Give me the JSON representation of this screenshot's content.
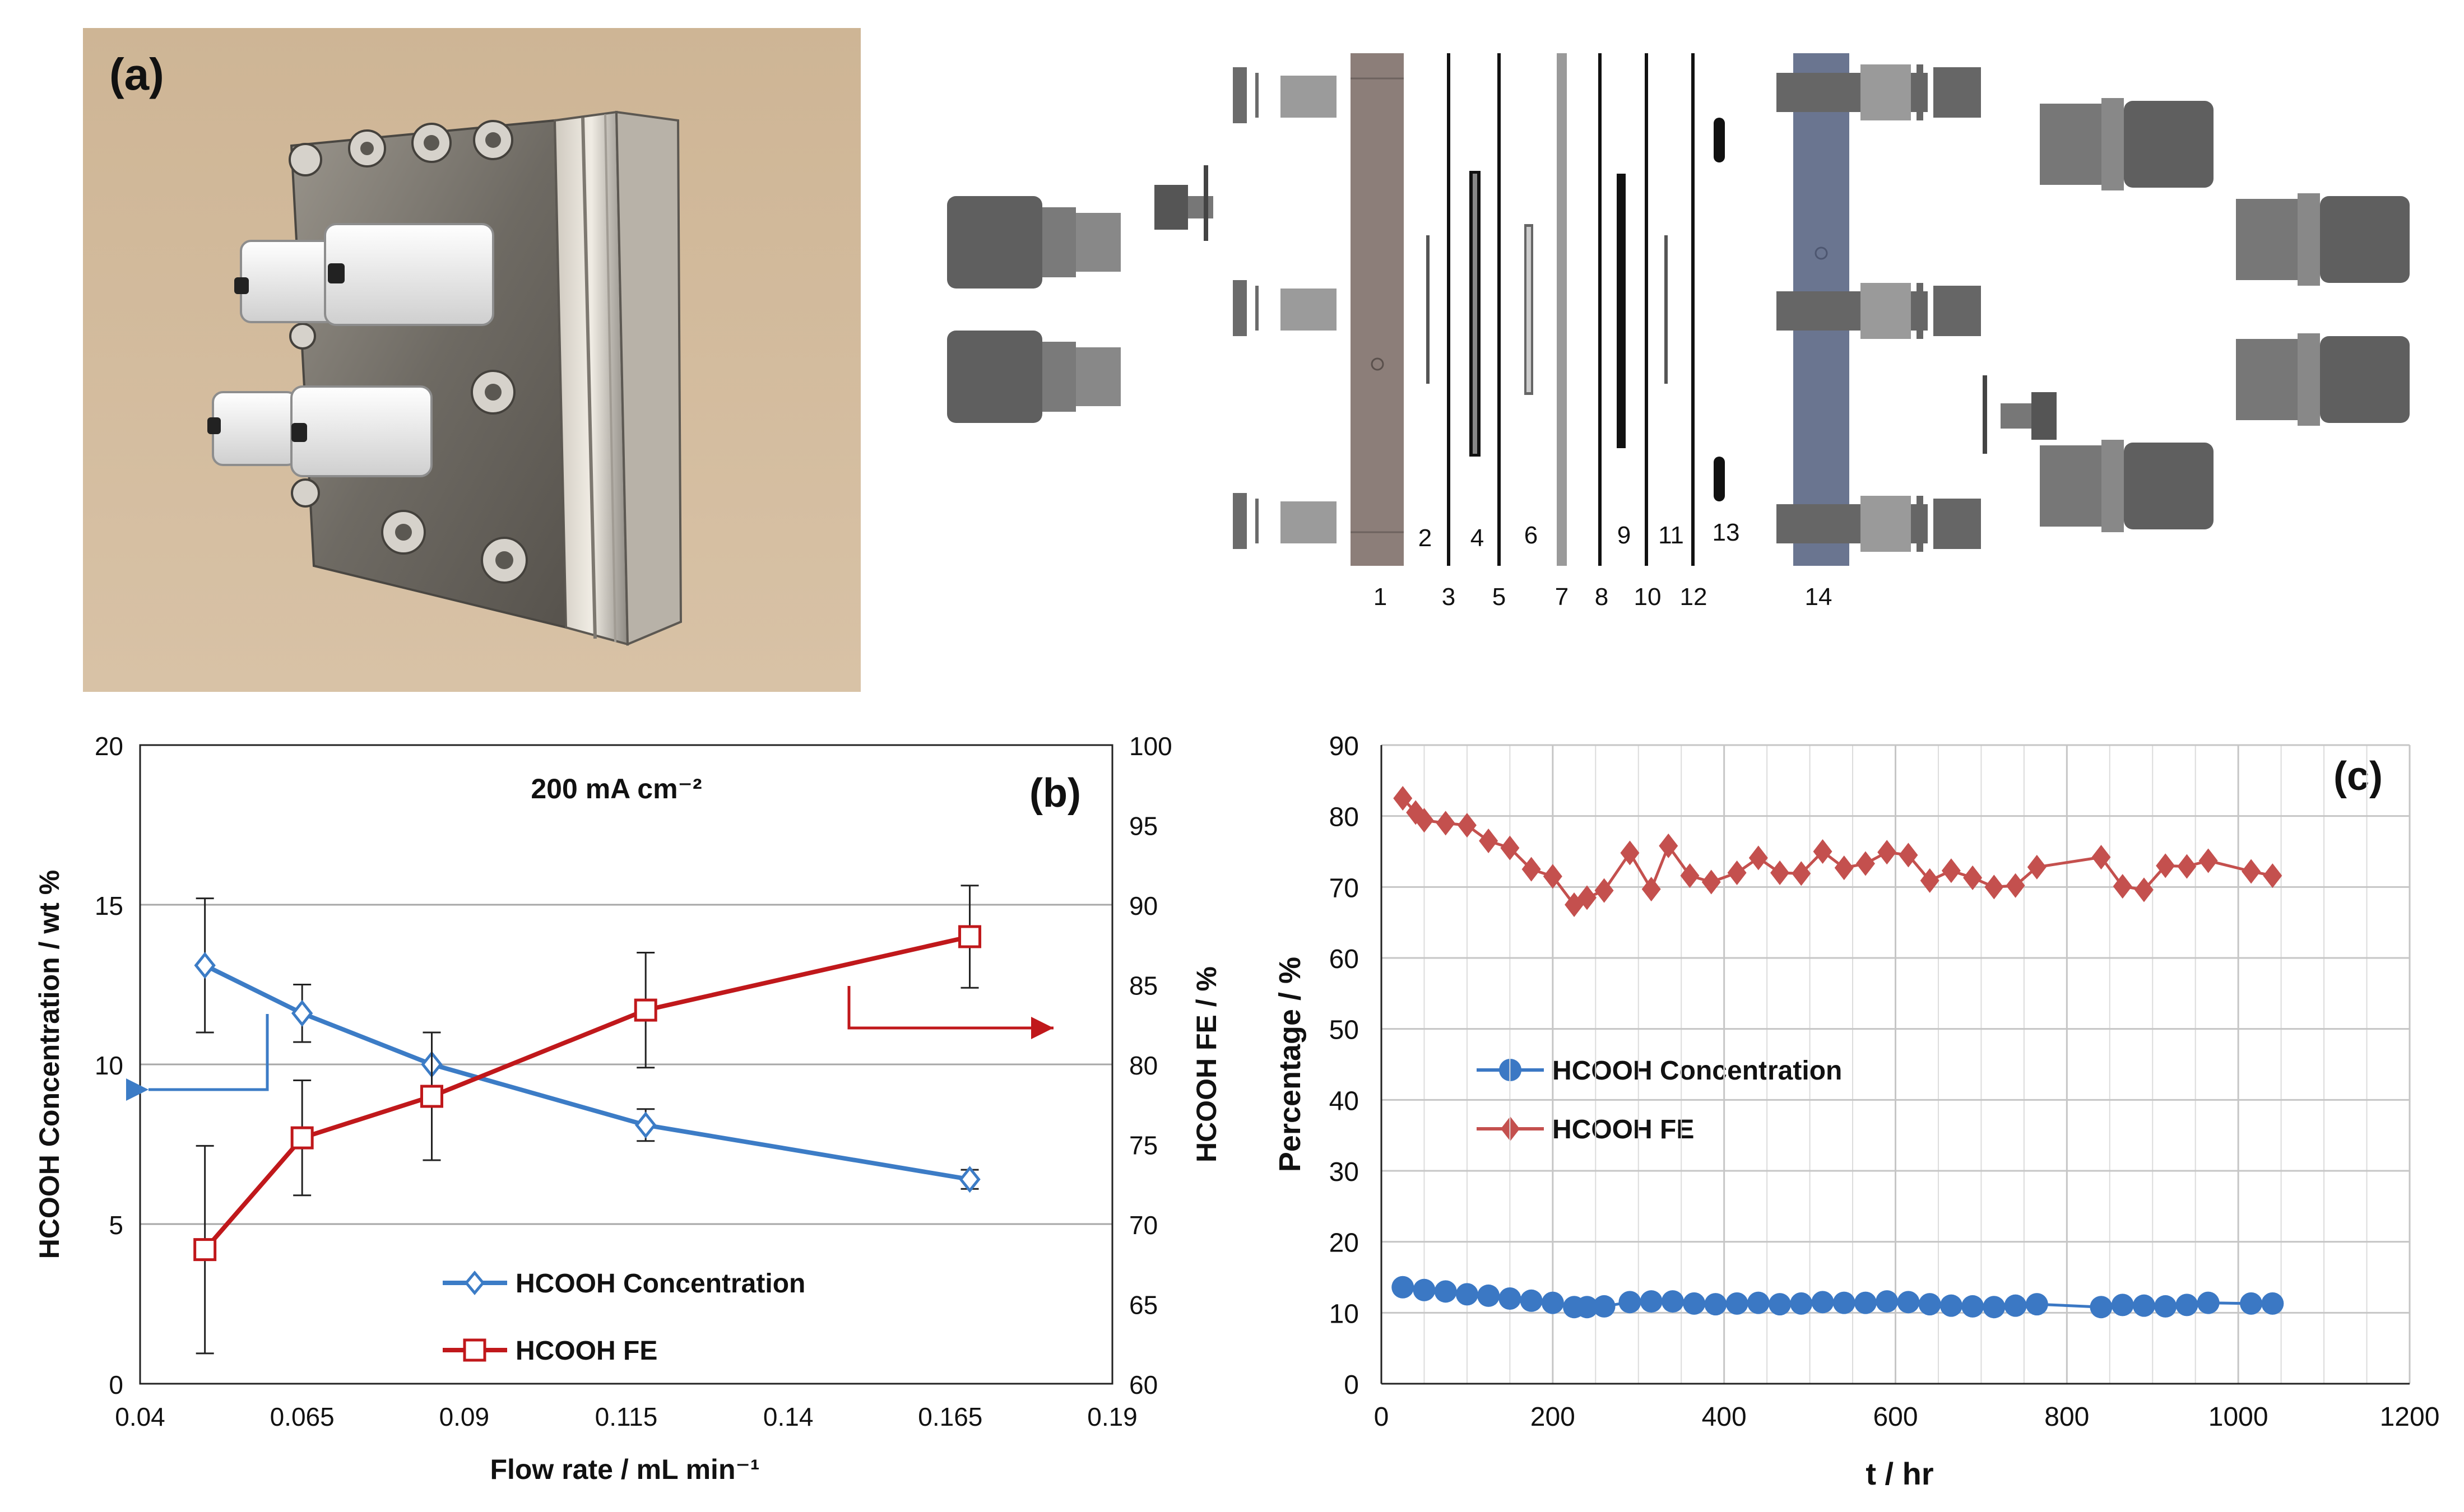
{
  "panel_a": {
    "label": "(a)",
    "part_numbers": [
      "1",
      "2",
      "3",
      "4",
      "5",
      "6",
      "7",
      "8",
      "9",
      "10",
      "11",
      "12",
      "13",
      "14"
    ]
  },
  "colors": {
    "blue": "#3c7cc6",
    "red": "#c0181b",
    "red_c": "#c4504e",
    "blue_c": "#3b78c4",
    "grid": "#a7a7a7",
    "plate_left": "#8c7e79",
    "plate_right": "#6a7590",
    "fitting": "#6a6a6a"
  },
  "chart_data": [
    {
      "id": "b",
      "type": "line",
      "panel_label": "(b)",
      "title": "200 mA cm⁻²",
      "xlabel": "Flow rate / mL min⁻¹",
      "ylabel": "HCOOH Concentration / wt %",
      "y2label": "HCOOH FE / %",
      "xlim": [
        0.04,
        0.19
      ],
      "xticks": [
        0.04,
        0.065,
        0.09,
        0.115,
        0.14,
        0.165,
        0.19
      ],
      "xtick_labels": [
        "0.04",
        "0.065",
        "0.09",
        "0.115",
        "0.14",
        "0.165",
        "0.19"
      ],
      "ylim": [
        0,
        20
      ],
      "yticks": [
        0,
        5,
        10,
        15,
        20
      ],
      "ytick_labels": [
        "0",
        "5",
        "10",
        "15",
        "20"
      ],
      "y2lim": [
        60,
        100
      ],
      "y2ticks": [
        60,
        65,
        70,
        75,
        80,
        85,
        90,
        95,
        100
      ],
      "y2tick_labels": [
        "60",
        "65",
        "70",
        "75",
        "80",
        "85",
        "90",
        "95",
        "100"
      ],
      "grid": "horizontal",
      "series": [
        {
          "name": "HCOOH Concentration",
          "axis": "left",
          "marker": "diamond",
          "x": [
            0.05,
            0.065,
            0.085,
            0.118,
            0.168
          ],
          "y": [
            13.1,
            11.6,
            10.0,
            8.1,
            6.4
          ],
          "err": [
            2.1,
            0.9,
            1.0,
            0.5,
            0.3
          ]
        },
        {
          "name": "HCOOH FE",
          "axis": "right",
          "marker": "square",
          "x": [
            0.05,
            0.065,
            0.085,
            0.118,
            0.168
          ],
          "y": [
            68.4,
            75.4,
            78.0,
            83.4,
            88.0
          ],
          "err": [
            6.5,
            3.6,
            4.0,
            3.6,
            3.2
          ]
        }
      ],
      "legend": "bottom-center",
      "annotations": [
        "arrow pointing left to left axis",
        "arrow pointing right to right axis"
      ]
    },
    {
      "id": "c",
      "type": "line",
      "panel_label": "(c)",
      "xlabel": "t / hr",
      "ylabel": "Percentage / %",
      "xlim": [
        0,
        1200
      ],
      "xticks": [
        0,
        200,
        400,
        600,
        800,
        1000,
        1200
      ],
      "xtick_labels": [
        "0",
        "200",
        "400",
        "600",
        "800",
        "1000",
        "1200"
      ],
      "ylim": [
        0,
        90
      ],
      "yticks": [
        0,
        10,
        20,
        30,
        40,
        50,
        60,
        70,
        80,
        90
      ],
      "ytick_labels": [
        "0",
        "10",
        "20",
        "30",
        "40",
        "50",
        "60",
        "70",
        "80",
        "90"
      ],
      "grid": "both",
      "series": [
        {
          "name": "HCOOH Concentration",
          "marker": "circle",
          "x": [
            25,
            50,
            75,
            100,
            125,
            150,
            175,
            200,
            225,
            240,
            260,
            290,
            315,
            340,
            365,
            390,
            415,
            440,
            465,
            490,
            515,
            540,
            565,
            590,
            615,
            640,
            665,
            690,
            715,
            740,
            765,
            840,
            865,
            890,
            915,
            940,
            965,
            1015,
            1040
          ],
          "y": [
            13.6,
            13.2,
            13.0,
            12.6,
            12.4,
            12.0,
            11.7,
            11.4,
            10.8,
            10.8,
            10.9,
            11.5,
            11.6,
            11.6,
            11.3,
            11.2,
            11.3,
            11.4,
            11.2,
            11.3,
            11.5,
            11.4,
            11.4,
            11.6,
            11.5,
            11.2,
            11.0,
            10.9,
            10.8,
            11.0,
            11.2,
            10.8,
            11.1,
            11.0,
            10.9,
            11.1,
            11.4,
            11.3,
            11.3
          ]
        },
        {
          "name": "HCOOH FE",
          "marker": "diamond",
          "x": [
            25,
            40,
            50,
            75,
            100,
            125,
            150,
            175,
            200,
            225,
            240,
            260,
            290,
            315,
            335,
            360,
            385,
            415,
            440,
            465,
            490,
            515,
            540,
            565,
            590,
            615,
            640,
            665,
            690,
            715,
            740,
            765,
            840,
            865,
            890,
            915,
            940,
            965,
            1015,
            1040
          ],
          "y": [
            82.5,
            80.5,
            79.4,
            79.0,
            78.7,
            76.5,
            75.5,
            72.5,
            71.5,
            67.5,
            68.5,
            69.5,
            74.8,
            69.7,
            75.8,
            71.6,
            70.7,
            72.0,
            74.1,
            72.0,
            71.9,
            75.0,
            72.7,
            73.3,
            74.9,
            74.5,
            70.9,
            72.3,
            71.3,
            70.0,
            70.2,
            72.8,
            74.2,
            70.1,
            69.6,
            73.0,
            72.9,
            73.7,
            72.2,
            71.6
          ]
        }
      ],
      "legend": "center-left"
    }
  ]
}
